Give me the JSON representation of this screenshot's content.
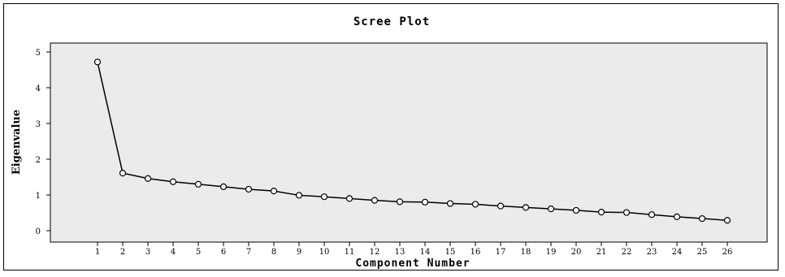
{
  "chart_data": {
    "type": "line",
    "title": "Scree Plot",
    "xlabel": "Component Number",
    "ylabel": "Eigenvalue",
    "x": [
      1,
      2,
      3,
      4,
      5,
      6,
      7,
      8,
      9,
      10,
      11,
      12,
      13,
      14,
      15,
      16,
      17,
      18,
      19,
      20,
      21,
      22,
      23,
      24,
      25,
      26
    ],
    "categories": [
      "1",
      "2",
      "3",
      "4",
      "5",
      "6",
      "7",
      "8",
      "9",
      "10",
      "11",
      "12",
      "13",
      "14",
      "15",
      "16",
      "17",
      "18",
      "19",
      "20",
      "21",
      "22",
      "23",
      "24",
      "25",
      "26"
    ],
    "y_ticks": [
      "0",
      "1",
      "2",
      "3",
      "4",
      "5"
    ],
    "ylim": [
      0,
      5
    ],
    "series": [
      {
        "values": [
          4.72,
          1.61,
          1.46,
          1.37,
          1.3,
          1.23,
          1.16,
          1.11,
          0.99,
          0.95,
          0.9,
          0.85,
          0.81,
          0.8,
          0.76,
          0.74,
          0.69,
          0.65,
          0.61,
          0.57,
          0.52,
          0.51,
          0.45,
          0.39,
          0.34,
          0.29
        ]
      }
    ],
    "grid": false,
    "legend": "none",
    "colors": {
      "plot_background": "#ebebeb",
      "line": "#000000",
      "marker_fill": "#ffffff"
    }
  }
}
